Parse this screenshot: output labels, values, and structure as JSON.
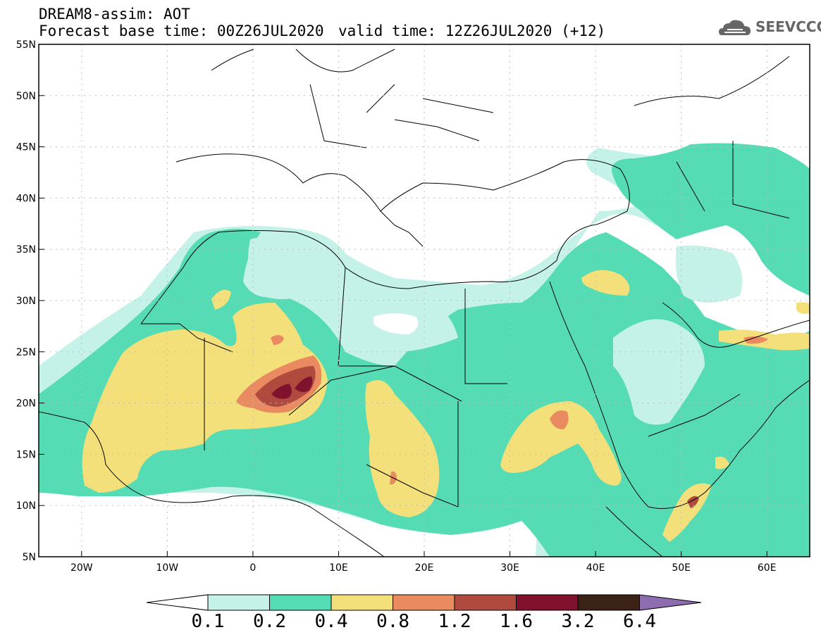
{
  "header": {
    "title_line1": "DREAM8-assim: AOT",
    "title_line2": "Forecast base time: 00Z26JUL2020",
    "valid_time": "valid time: 12Z26JUL2020 (+12)",
    "logo_text": "SEEVCCC"
  },
  "map": {
    "variable": "AOT",
    "lon_range": [
      -25,
      65
    ],
    "lat_range": [
      5,
      55
    ],
    "lat_ticks": [
      "55N",
      "50N",
      "45N",
      "40N",
      "35N",
      "30N",
      "25N",
      "20N",
      "15N",
      "10N",
      "5N"
    ],
    "lon_ticks": [
      "20W",
      "10W",
      "0",
      "10E",
      "20E",
      "30E",
      "40E",
      "50E",
      "60E"
    ],
    "grid": true,
    "colors": {
      "c01": "#c4f2e8",
      "c02": "#55dcb4",
      "c04": "#f3e07a",
      "c08": "#e98a60",
      "c12": "#b04a3e",
      "c16": "#80122e",
      "c32": "#3a2316",
      "c64": "#8e6cb0"
    }
  },
  "colorbar": {
    "labels": [
      "0.1",
      "0.2",
      "0.4",
      "0.8",
      "1.2",
      "1.6",
      "3.2",
      "6.4"
    ],
    "colors": [
      "#c4f2e8",
      "#55dcb4",
      "#f3e07a",
      "#e98a60",
      "#b04a3e",
      "#80122e",
      "#3a2316",
      "#8e6cb0"
    ]
  }
}
